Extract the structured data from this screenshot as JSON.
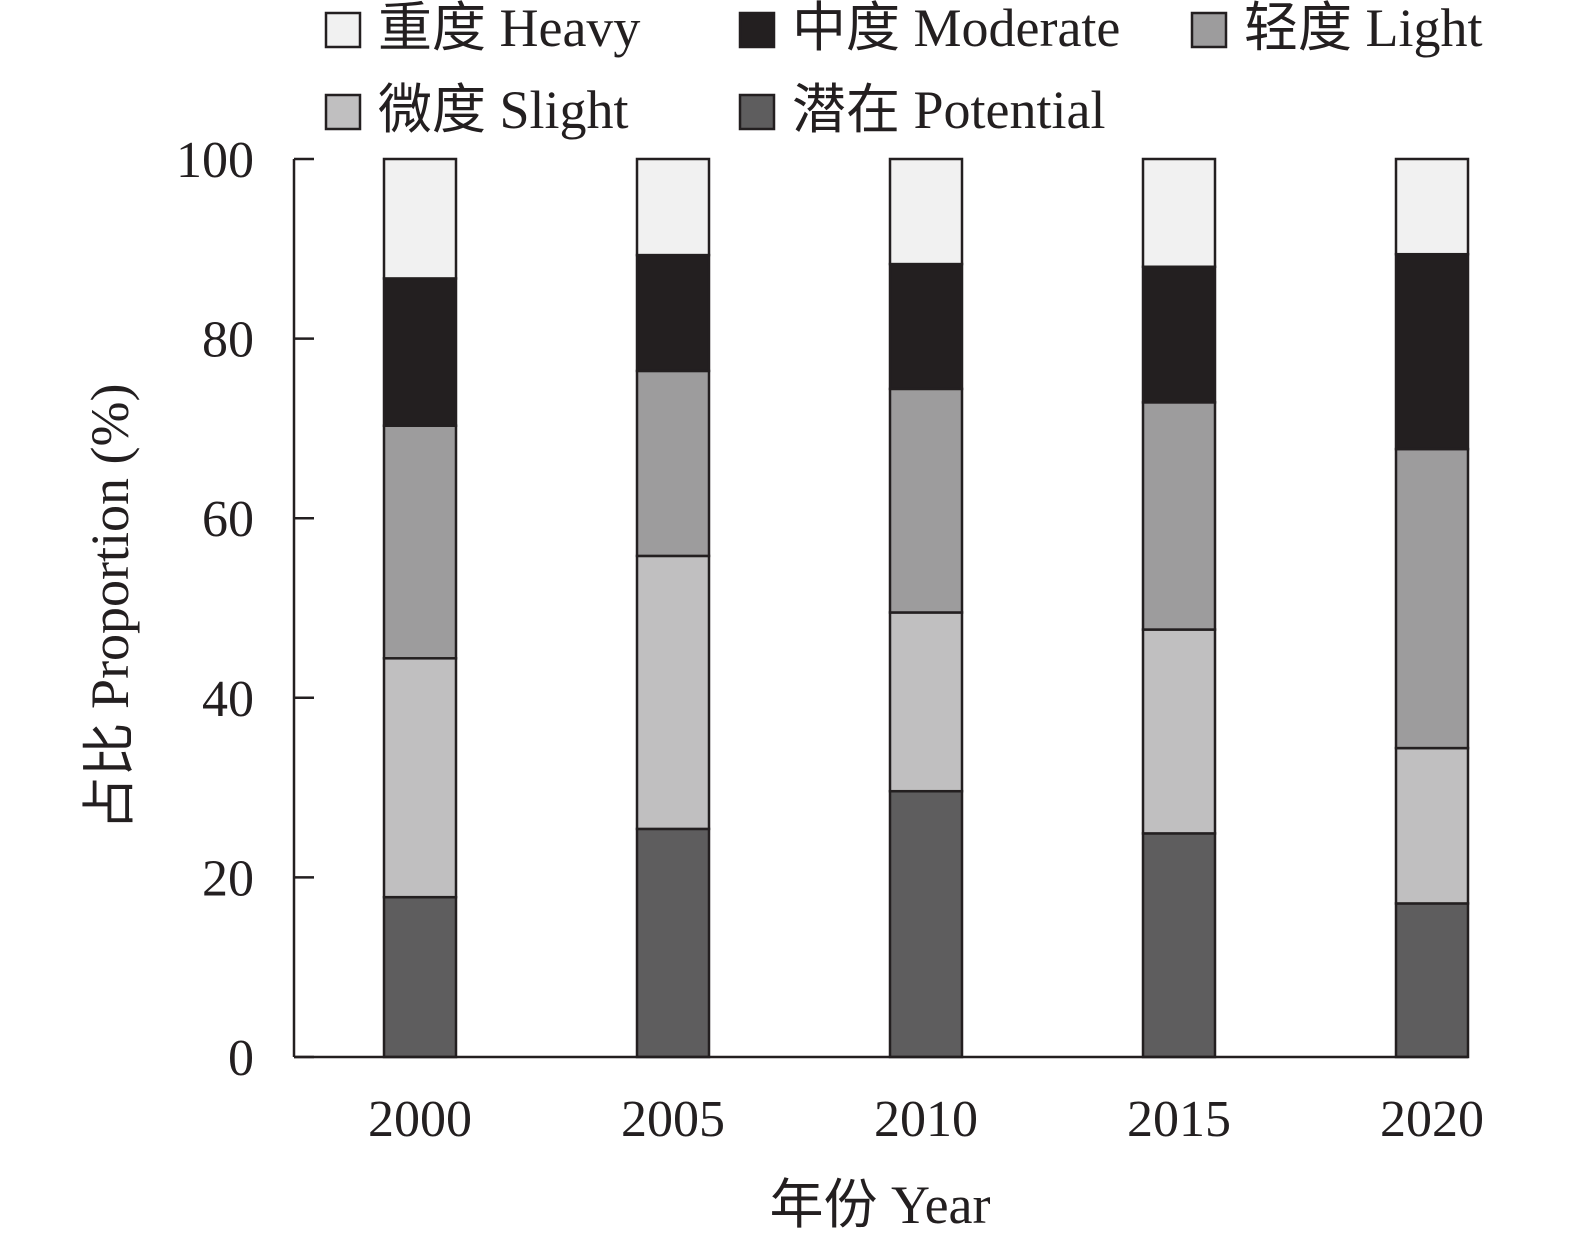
{
  "chart_data": {
    "type": "bar",
    "stacked": true,
    "xlabel": "年份 Year",
    "ylabel": "占比 Proportion (%)",
    "ylim": [
      0,
      100
    ],
    "yticks": [
      0,
      20,
      40,
      60,
      80,
      100
    ],
    "categories": [
      "2000",
      "2005",
      "2010",
      "2015",
      "2020"
    ],
    "grid": false,
    "legend_position": "top",
    "series": [
      {
        "name": "潜在 Potential",
        "color": "#5e5d5e",
        "values": [
          17.8,
          25.4,
          29.6,
          24.9,
          17.1
        ]
      },
      {
        "name": "微度 Slight",
        "color": "#c0bfc0",
        "values": [
          26.6,
          30.4,
          19.9,
          22.7,
          17.3
        ]
      },
      {
        "name": "轻度 Light",
        "color": "#9d9c9d",
        "values": [
          25.9,
          20.6,
          24.9,
          25.3,
          33.3
        ]
      },
      {
        "name": "中度 Moderate",
        "color": "#231f20",
        "values": [
          16.4,
          12.9,
          13.9,
          15.1,
          21.7
        ]
      },
      {
        "name": "重度 Heavy",
        "color": "#f1f1f1",
        "values": [
          13.3,
          10.7,
          11.7,
          12.0,
          10.6
        ]
      }
    ],
    "legend_order": [
      "重度 Heavy",
      "中度 Moderate",
      "轻度 Light",
      "微度 Slight",
      "潜在 Potential"
    ]
  }
}
